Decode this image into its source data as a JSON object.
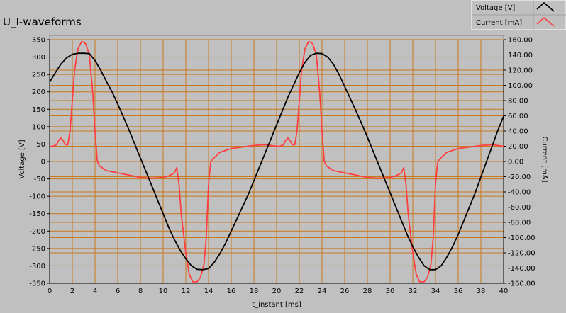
{
  "chart_data": {
    "type": "line",
    "title": "U_I-waveforms",
    "xlabel": "t_instant [ms]",
    "ylabel_left": "Voltage [V]",
    "ylabel_right": "Current [mA]",
    "xlim": [
      0,
      40
    ],
    "ylim_left": [
      -350,
      350
    ],
    "ylim_right": [
      -160,
      160
    ],
    "grid": true,
    "legend_position": "top-right",
    "x_ticks": [
      "0",
      "2",
      "4",
      "6",
      "8",
      "10",
      "12",
      "14",
      "16",
      "18",
      "20",
      "22",
      "24",
      "26",
      "28",
      "30",
      "32",
      "34",
      "36",
      "38",
      "40"
    ],
    "y_left_ticks": [
      "350",
      "300",
      "250",
      "200",
      "150",
      "100",
      "50",
      "0",
      "-50",
      "-100",
      "-150",
      "-200",
      "-250",
      "-300",
      "-350"
    ],
    "y_right_ticks": [
      "160.00",
      "140.00",
      "120.00",
      "100.00",
      "80.00",
      "60.00",
      "40.00",
      "20.00",
      "0.00",
      "-20.00",
      "-40.00",
      "-60.00",
      "-80.00",
      "-100.00",
      "-120.00",
      "-140.00",
      "-160.00"
    ],
    "series": [
      {
        "name": "Voltage [V]",
        "color": "#000000",
        "axis": "left",
        "points": [
          [
            0,
            228
          ],
          [
            0.5,
            255
          ],
          [
            1,
            280
          ],
          [
            1.5,
            298
          ],
          [
            2,
            308
          ],
          [
            2.5,
            311
          ],
          [
            3,
            311
          ],
          [
            3.5,
            310
          ],
          [
            4,
            290
          ],
          [
            4.5,
            262
          ],
          [
            5,
            230
          ],
          [
            5.5,
            200
          ],
          [
            6,
            165
          ],
          [
            6.5,
            128
          ],
          [
            7,
            90
          ],
          [
            7.5,
            50
          ],
          [
            8,
            10
          ],
          [
            8.5,
            -30
          ],
          [
            9,
            -70
          ],
          [
            9.5,
            -110
          ],
          [
            10,
            -150
          ],
          [
            10.5,
            -190
          ],
          [
            11,
            -225
          ],
          [
            11.5,
            -255
          ],
          [
            12,
            -280
          ],
          [
            12.5,
            -300
          ],
          [
            13,
            -310
          ],
          [
            13.5,
            -311
          ],
          [
            14,
            -308
          ],
          [
            14.5,
            -290
          ],
          [
            15,
            -265
          ],
          [
            15.5,
            -235
          ],
          [
            16,
            -200
          ],
          [
            16.5,
            -165
          ],
          [
            17,
            -130
          ],
          [
            17.5,
            -95
          ],
          [
            18,
            -55
          ],
          [
            18.5,
            -15
          ],
          [
            19,
            25
          ],
          [
            19.5,
            65
          ],
          [
            20,
            105
          ],
          [
            20.5,
            145
          ],
          [
            21,
            185
          ],
          [
            21.5,
            220
          ],
          [
            22,
            255
          ],
          [
            22.5,
            285
          ],
          [
            23,
            305
          ],
          [
            23.5,
            311
          ],
          [
            24,
            310
          ],
          [
            24.5,
            300
          ],
          [
            25,
            280
          ],
          [
            25.5,
            250
          ],
          [
            26,
            215
          ],
          [
            26.5,
            180
          ],
          [
            27,
            145
          ],
          [
            27.5,
            108
          ],
          [
            28,
            70
          ],
          [
            28.5,
            30
          ],
          [
            29,
            -10
          ],
          [
            29.5,
            -50
          ],
          [
            30,
            -90
          ],
          [
            30.5,
            -130
          ],
          [
            31,
            -170
          ],
          [
            31.5,
            -210
          ],
          [
            32,
            -245
          ],
          [
            32.5,
            -275
          ],
          [
            33,
            -300
          ],
          [
            33.5,
            -311
          ],
          [
            34,
            -311
          ],
          [
            34.5,
            -300
          ],
          [
            35,
            -275
          ],
          [
            35.5,
            -245
          ],
          [
            36,
            -210
          ],
          [
            36.5,
            -170
          ],
          [
            37,
            -130
          ],
          [
            37.5,
            -90
          ],
          [
            38,
            -45
          ],
          [
            38.5,
            0
          ],
          [
            39,
            45
          ],
          [
            39.5,
            90
          ],
          [
            40,
            130
          ]
        ]
      },
      {
        "name": "Current [mA]",
        "color": "#ff4040",
        "axis": "right",
        "points": [
          [
            0,
            20
          ],
          [
            0.3,
            20
          ],
          [
            0.6,
            22
          ],
          [
            0.8,
            28
          ],
          [
            1,
            31
          ],
          [
            1.2,
            27
          ],
          [
            1.4,
            22
          ],
          [
            1.6,
            22
          ],
          [
            1.8,
            40
          ],
          [
            2,
            80
          ],
          [
            2.2,
            120
          ],
          [
            2.5,
            148
          ],
          [
            2.8,
            157
          ],
          [
            3,
            157
          ],
          [
            3.2,
            154
          ],
          [
            3.5,
            140
          ],
          [
            3.8,
            90
          ],
          [
            4,
            40
          ],
          [
            4.2,
            0
          ],
          [
            4.4,
            -6
          ],
          [
            5,
            -12
          ],
          [
            6,
            -15
          ],
          [
            7,
            -18
          ],
          [
            8,
            -21
          ],
          [
            9,
            -22
          ],
          [
            10,
            -21
          ],
          [
            10.5,
            -19
          ],
          [
            11,
            -15
          ],
          [
            11.2,
            -8
          ],
          [
            11.4,
            -30
          ],
          [
            11.6,
            -70
          ],
          [
            12,
            -120
          ],
          [
            12.3,
            -148
          ],
          [
            12.6,
            -158
          ],
          [
            13,
            -158
          ],
          [
            13.3,
            -152
          ],
          [
            13.6,
            -135
          ],
          [
            13.8,
            -100
          ],
          [
            14,
            -30
          ],
          [
            14.2,
            0
          ],
          [
            14.5,
            5
          ],
          [
            15,
            12
          ],
          [
            16,
            17
          ],
          [
            17,
            19
          ],
          [
            18,
            21
          ],
          [
            19,
            22
          ],
          [
            20,
            20
          ],
          [
            20.3,
            20
          ],
          [
            20.6,
            22
          ],
          [
            20.8,
            28
          ],
          [
            21,
            31
          ],
          [
            21.2,
            27
          ],
          [
            21.4,
            22
          ],
          [
            21.6,
            22
          ],
          [
            21.8,
            40
          ],
          [
            22,
            80
          ],
          [
            22.2,
            120
          ],
          [
            22.5,
            148
          ],
          [
            22.8,
            157
          ],
          [
            23,
            157
          ],
          [
            23.2,
            154
          ],
          [
            23.5,
            140
          ],
          [
            23.8,
            90
          ],
          [
            24,
            40
          ],
          [
            24.2,
            0
          ],
          [
            24.4,
            -6
          ],
          [
            25,
            -12
          ],
          [
            26,
            -15
          ],
          [
            27,
            -18
          ],
          [
            28,
            -21
          ],
          [
            29,
            -22
          ],
          [
            30,
            -21
          ],
          [
            30.5,
            -19
          ],
          [
            31,
            -15
          ],
          [
            31.2,
            -8
          ],
          [
            31.4,
            -30
          ],
          [
            31.6,
            -70
          ],
          [
            32,
            -120
          ],
          [
            32.3,
            -148
          ],
          [
            32.6,
            -158
          ],
          [
            33,
            -158
          ],
          [
            33.3,
            -152
          ],
          [
            33.6,
            -135
          ],
          [
            33.8,
            -100
          ],
          [
            34,
            -30
          ],
          [
            34.2,
            0
          ],
          [
            34.5,
            5
          ],
          [
            35,
            12
          ],
          [
            36,
            17
          ],
          [
            37,
            19
          ],
          [
            38,
            21
          ],
          [
            39,
            22
          ],
          [
            40,
            20
          ]
        ]
      }
    ]
  }
}
